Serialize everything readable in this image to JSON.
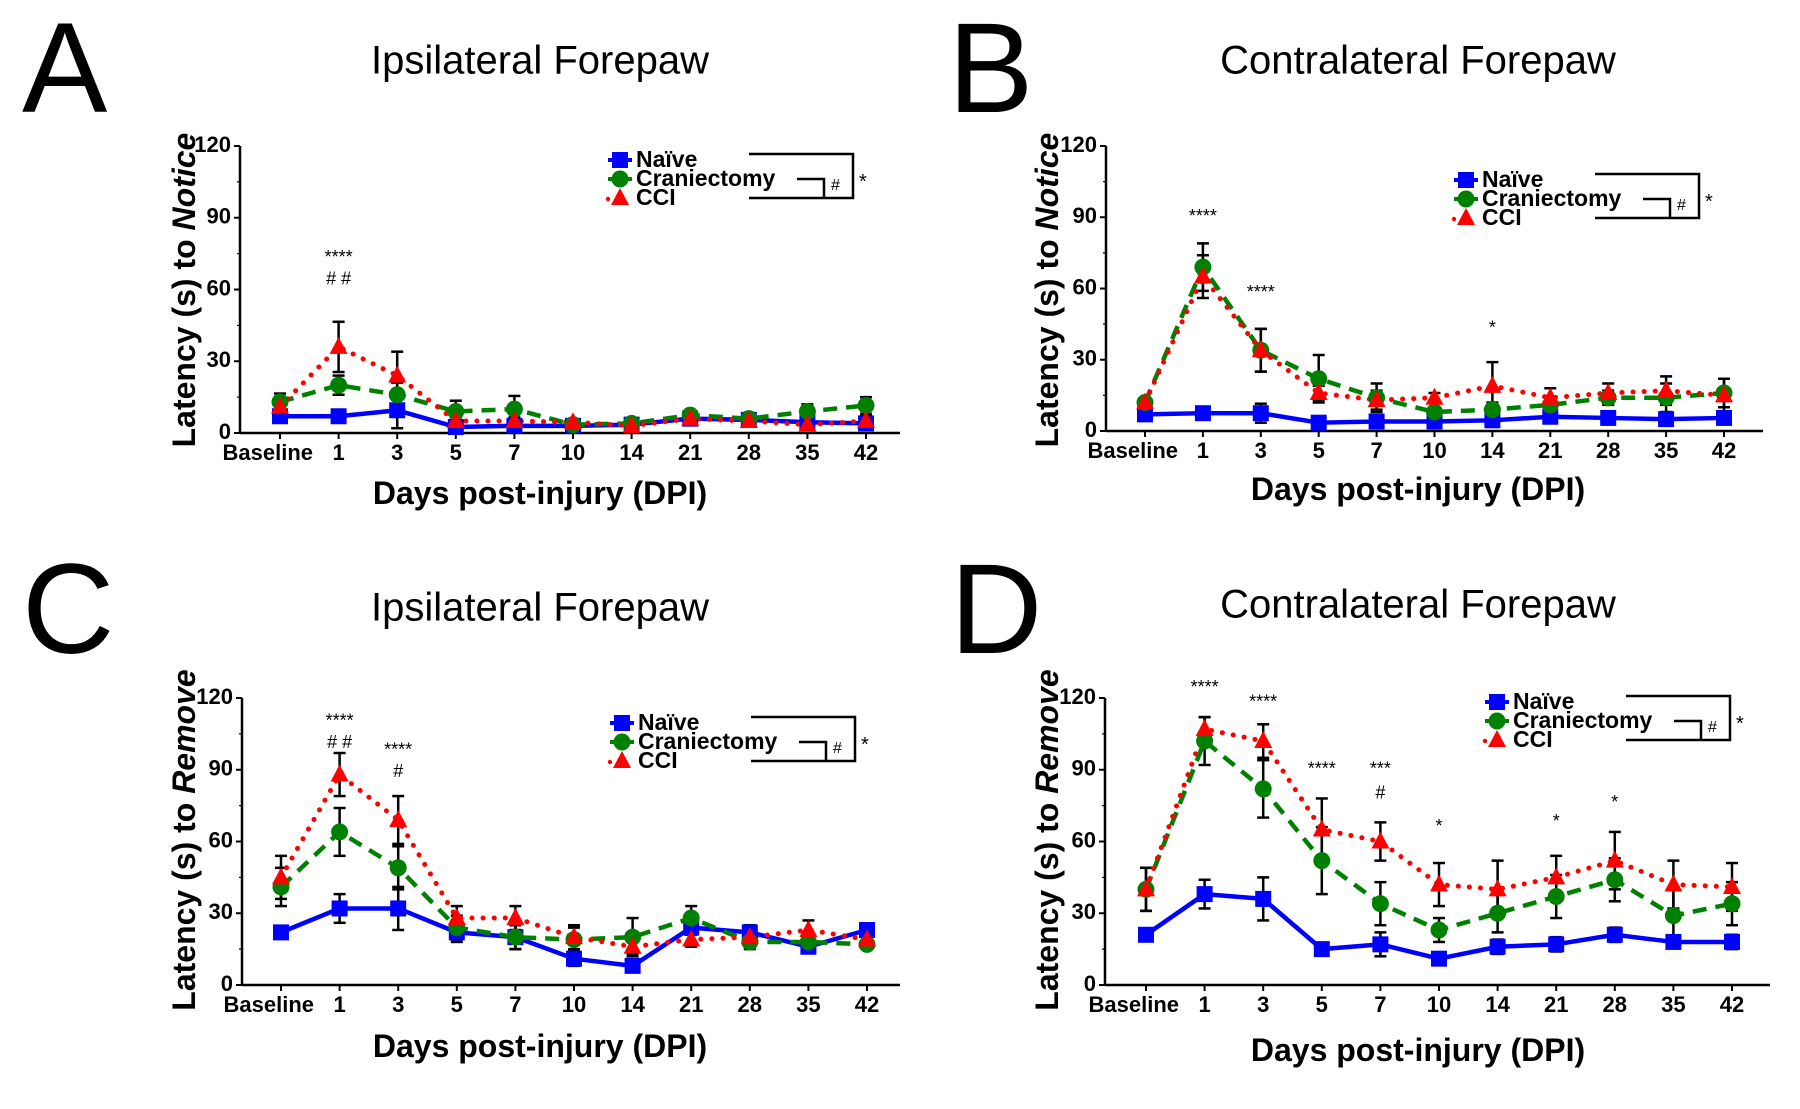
{
  "figure": {
    "x_axis_title": "Days post-injury (DPI)",
    "legend_bracket": {
      "inner_label": "#",
      "outer_label": "*"
    }
  },
  "series_styles": [
    {
      "name": "Naïve",
      "color": "#0000ff",
      "marker": "square",
      "line": "solid"
    },
    {
      "name": "Craniectomy",
      "color": "#008000",
      "marker": "circle",
      "line": "dashed"
    },
    {
      "name": "CCI",
      "color": "#ff0000",
      "marker": "triangle",
      "line": "dotted"
    }
  ],
  "chart_data": [
    {
      "panel": "A",
      "type": "line",
      "title": "Ipsilateral Forepaw",
      "xlabel": "Days post-injury (DPI)",
      "ylabel_prefix": "Latency (s) to ",
      "ylabel_italic": "Notice",
      "categories": [
        "Baseline",
        "1",
        "3",
        "5",
        "7",
        "10",
        "14",
        "21",
        "28",
        "35",
        "42"
      ],
      "yticks": [
        0,
        30,
        60,
        90,
        120
      ],
      "ylim": [
        0,
        120
      ],
      "legend": "top-right",
      "series": [
        {
          "name": "Naïve",
          "values": [
            7,
            7,
            9.5,
            2.5,
            3,
            3,
            3.5,
            6,
            5.5,
            4.5,
            4
          ],
          "err": [
            1.5,
            1.5,
            7.5,
            1,
            1,
            1,
            1,
            1.5,
            1.5,
            1,
            2
          ]
        },
        {
          "name": "Craniectomy",
          "values": [
            13,
            20,
            16,
            9,
            10,
            3.5,
            4,
            7.5,
            6,
            9,
            11.5
          ],
          "err": [
            3.5,
            4,
            5,
            4.5,
            5.5,
            1,
            1,
            2,
            1.5,
            3,
            3.5
          ]
        },
        {
          "name": "CCI",
          "values": [
            11,
            36,
            24,
            5,
            5,
            4.5,
            3,
            6,
            5,
            3.5,
            5
          ],
          "err": [
            3,
            10.5,
            10,
            1.5,
            1.5,
            1,
            1,
            1.5,
            1.5,
            1,
            2
          ]
        }
      ],
      "annotations": [
        {
          "category": "1",
          "text": "****",
          "y": 71
        },
        {
          "category": "1",
          "text": "# #",
          "y": 62
        }
      ]
    },
    {
      "panel": "B",
      "type": "line",
      "title": "Contralateral Forepaw",
      "xlabel": "Days post-injury (DPI)",
      "ylabel_prefix": "Latency (s) to ",
      "ylabel_italic": "Notice",
      "categories": [
        "Baseline",
        "1",
        "3",
        "5",
        "7",
        "10",
        "14",
        "21",
        "28",
        "35",
        "42"
      ],
      "yticks": [
        0,
        30,
        60,
        90,
        120
      ],
      "ylim": [
        0,
        120
      ],
      "legend": "top-right",
      "series": [
        {
          "name": "Naïve",
          "values": [
            7,
            7.5,
            7.5,
            3.5,
            4,
            4,
            4.5,
            6,
            5.5,
            5,
            5.5
          ],
          "err": [
            1,
            1,
            4,
            1,
            1,
            1,
            1,
            1,
            1,
            1,
            1
          ]
        },
        {
          "name": "Craniectomy",
          "values": [
            12,
            69,
            34,
            22,
            14,
            8,
            9,
            11,
            14,
            14,
            16
          ],
          "err": [
            2,
            10,
            9,
            10,
            6,
            2,
            3,
            3,
            3,
            6,
            6
          ]
        },
        {
          "name": "CCI",
          "values": [
            12,
            65,
            34,
            16,
            13,
            14,
            19,
            14,
            16,
            17,
            15
          ],
          "err": [
            2,
            9,
            9,
            3,
            4,
            2,
            10,
            4,
            4,
            6,
            7
          ]
        }
      ],
      "annotations": [
        {
          "category": "1",
          "text": "****",
          "y": 88
        },
        {
          "category": "3",
          "text": "****",
          "y": 56
        },
        {
          "category": "14",
          "text": "*",
          "y": 41
        }
      ]
    },
    {
      "panel": "C",
      "type": "line",
      "title": "Ipsilateral Forepaw",
      "xlabel": "Days post-injury (DPI)",
      "ylabel_prefix": "Latency (s) to ",
      "ylabel_italic": "Remove",
      "categories": [
        "Baseline",
        "1",
        "3",
        "5",
        "7",
        "10",
        "14",
        "21",
        "28",
        "35",
        "42"
      ],
      "yticks": [
        0,
        30,
        60,
        90,
        120
      ],
      "ylim": [
        0,
        120
      ],
      "legend": "top-right",
      "series": [
        {
          "name": "Naïve",
          "values": [
            22,
            32,
            32,
            22,
            20,
            11,
            8,
            24,
            22,
            16,
            23
          ],
          "err": [
            1,
            6,
            9,
            4,
            5,
            3,
            1,
            3,
            3,
            2,
            2
          ]
        },
        {
          "name": "Craniectomy",
          "values": [
            41,
            64,
            49,
            24,
            20,
            19,
            20,
            28,
            18,
            18,
            17
          ],
          "err": [
            8,
            10,
            9,
            5,
            5,
            5,
            8,
            5,
            3,
            3,
            2
          ]
        },
        {
          "name": "CCI",
          "values": [
            45,
            88,
            69,
            28,
            28,
            20,
            16,
            19,
            20,
            23,
            19
          ],
          "err": [
            9,
            9,
            10,
            5,
            5,
            5,
            3,
            3,
            3,
            4,
            3
          ]
        }
      ],
      "annotations": [
        {
          "category": "1",
          "text": "****",
          "y": 108
        },
        {
          "category": "1",
          "text": "# #",
          "y": 99
        },
        {
          "category": "3",
          "text": "****",
          "y": 96
        },
        {
          "category": "3",
          "text": "#",
          "y": 87
        }
      ]
    },
    {
      "panel": "D",
      "type": "line",
      "title": "Contralateral Forepaw",
      "xlabel": "Days post-injury (DPI)",
      "ylabel_prefix": "Latency (s) to ",
      "ylabel_italic": "Remove",
      "categories": [
        "Baseline",
        "1",
        "3",
        "5",
        "7",
        "10",
        "14",
        "21",
        "28",
        "35",
        "42"
      ],
      "yticks": [
        0,
        30,
        60,
        90,
        120
      ],
      "ylim": [
        0,
        120
      ],
      "legend": "top-right",
      "series": [
        {
          "name": "Naïve",
          "values": [
            21,
            38,
            36,
            15,
            17,
            11,
            16,
            17,
            21,
            18,
            18
          ],
          "err": [
            2,
            6,
            9,
            2,
            5,
            1,
            3,
            3,
            3,
            2,
            3
          ]
        },
        {
          "name": "Craniectomy",
          "values": [
            40,
            102,
            82,
            52,
            34,
            23,
            30,
            37,
            44,
            29,
            34
          ],
          "err": [
            9,
            10,
            12,
            14,
            9,
            5,
            8,
            9,
            9,
            11,
            9
          ]
        },
        {
          "name": "CCI",
          "values": [
            40,
            107,
            102,
            65,
            60,
            42,
            40,
            45,
            52,
            42,
            41
          ],
          "err": [
            9,
            5,
            7,
            13,
            8,
            9,
            12,
            9,
            12,
            10,
            10
          ]
        }
      ],
      "annotations": [
        {
          "category": "1",
          "text": "****",
          "y": 122
        },
        {
          "category": "3",
          "text": "****",
          "y": 116
        },
        {
          "category": "5",
          "text": "****",
          "y": 88
        },
        {
          "category": "7",
          "text": "***",
          "y": 88
        },
        {
          "category": "7",
          "text": "#",
          "y": 78
        },
        {
          "category": "10",
          "text": "*",
          "y": 64
        },
        {
          "category": "21",
          "text": "*",
          "y": 66
        },
        {
          "category": "28",
          "text": "*",
          "y": 74
        }
      ]
    }
  ]
}
